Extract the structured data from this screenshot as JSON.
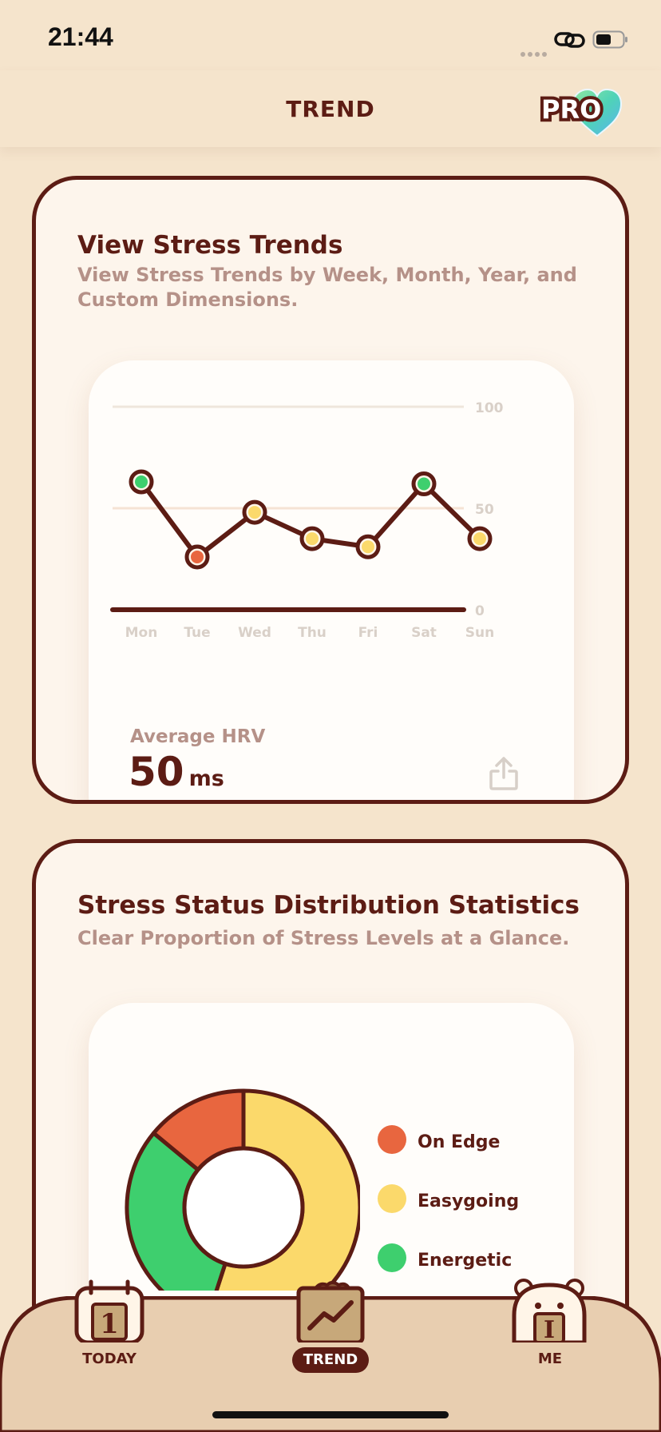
{
  "status": {
    "time": "21:44"
  },
  "nav": {
    "title": "TREND",
    "pro_badge": "PRO"
  },
  "card1": {
    "title": "View Stress Trends",
    "subtitle_line1": "View Stress Trends by Week, Month, Year, and",
    "subtitle_line2": "Custom Dimensions.",
    "avg_label": "Average HRV",
    "avg_value": "50",
    "avg_unit": "ms"
  },
  "chart_data": [
    {
      "type": "line",
      "categories": [
        "Mon",
        "Tue",
        "Wed",
        "Thu",
        "Fri",
        "Sat",
        "Sun"
      ],
      "values": [
        63,
        26,
        48,
        35,
        31,
        62,
        35
      ],
      "point_colors": [
        "#3ecf6e",
        "#e8663f",
        "#fbd96b",
        "#fbd96b",
        "#fbd96b",
        "#3ecf6e",
        "#fbd96b"
      ],
      "ylim": [
        0,
        100
      ],
      "yticks": [
        "0",
        "50",
        "100"
      ]
    },
    {
      "type": "pie",
      "labels": [
        "On Edge",
        "Easygoing",
        "Energetic"
      ],
      "values": [
        14,
        55,
        31
      ],
      "colors": [
        "#e8663f",
        "#fbd96b",
        "#3ecf6e"
      ]
    }
  ],
  "card2": {
    "title": "Stress Status Distribution Statistics",
    "subtitle": "Clear Proportion of Stress Levels at a Glance.",
    "legend": [
      "On Edge",
      "Easygoing",
      "Energetic"
    ]
  },
  "tabs": [
    {
      "label": "TODAY",
      "icon_digit": "1"
    },
    {
      "label": "TREND"
    },
    {
      "label": "ME",
      "icon_letter": "I"
    }
  ],
  "colors": {
    "brown": "#5c1c14",
    "bg": "#f5e4cc",
    "card": "#fdf5ec",
    "muted": "#b59188"
  }
}
